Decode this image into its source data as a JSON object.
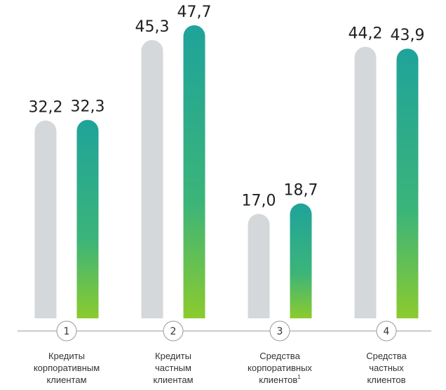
{
  "chart_data": {
    "type": "bar",
    "categories": [
      {
        "number": "1",
        "label_lines": [
          "Кредиты",
          "корпоративным",
          "клиентам"
        ],
        "footnote": ""
      },
      {
        "number": "2",
        "label_lines": [
          "Кредиты",
          "частным",
          "клиентам"
        ],
        "footnote": ""
      },
      {
        "number": "3",
        "label_lines": [
          "Средства",
          "корпоративных",
          "клиентов"
        ],
        "footnote": "1"
      },
      {
        "number": "4",
        "label_lines": [
          "Средства",
          "частных",
          "клиентов"
        ],
        "footnote": ""
      }
    ],
    "series": [
      {
        "values": [
          32.2,
          45.3,
          17.0,
          44.2
        ],
        "labels": [
          "32,2",
          "45,3",
          "17,0",
          "44,2"
        ],
        "color": "#d5d8da"
      },
      {
        "values": [
          32.3,
          47.7,
          18.7,
          43.9
        ],
        "labels": [
          "32,3",
          "47,7",
          "18,7",
          "43,9"
        ],
        "color_top": "#1fa39a",
        "color_mid": "#3bb47a",
        "color_bottom": "#8bcb2e"
      }
    ],
    "ylim": [
      0,
      47.7
    ],
    "grid": false,
    "axis_color": "#9a9a9a"
  }
}
